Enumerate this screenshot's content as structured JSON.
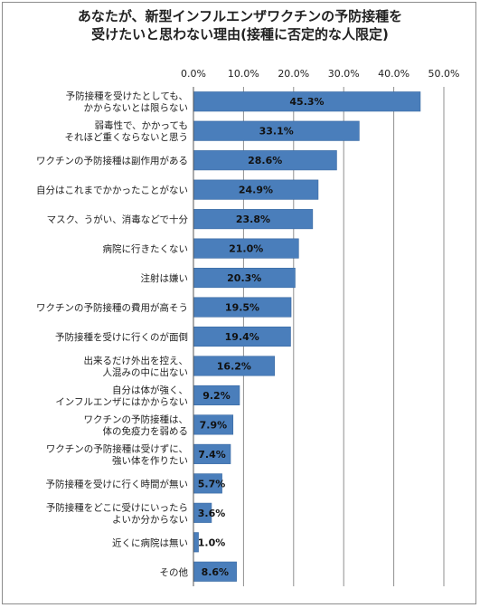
{
  "chart_data": {
    "type": "bar",
    "orientation": "horizontal",
    "title": [
      "あなたが、新型インフルエンザワクチンの予防接種を",
      "受けたいと思わない理由(接種に否定的な人限定)"
    ],
    "xlim": [
      0,
      50
    ],
    "x_ticks": [
      "0.0%",
      "10.0%",
      "20.0%",
      "30.0%",
      "40.0%",
      "50.0%"
    ],
    "grid": "vertical",
    "bar_color": "#4a7ebb",
    "categories": [
      [
        "予防接種を受けたとしても、",
        "かからないとは限らない"
      ],
      [
        "弱毒性で、かかっても",
        "それほど重くならないと思う"
      ],
      [
        "ワクチンの予防接種は副作用がある"
      ],
      [
        "自分はこれまでかかったことがない"
      ],
      [
        "マスク、うがい、消毒などで十分"
      ],
      [
        "病院に行きたくない"
      ],
      [
        "注射は嫌い"
      ],
      [
        "ワクチンの予防接種の費用が高そう"
      ],
      [
        "予防接種を受けに行くのが面倒"
      ],
      [
        "出来るだけ外出を控え、",
        "人混みの中に出ない"
      ],
      [
        "自分は体が強く、",
        "インフルエンザにはかからない"
      ],
      [
        "ワクチンの予防接種は、",
        "体の免疫力を弱める"
      ],
      [
        "ワクチンの予防接種は受けずに、",
        "強い体を作りたい"
      ],
      [
        "予防接種を受けに行く時間が無い"
      ],
      [
        "予防接種をどこに受けにいったら",
        "よいか分からない"
      ],
      [
        "近くに病院は無い"
      ],
      [
        "その他"
      ]
    ],
    "values": [
      45.3,
      33.1,
      28.6,
      24.9,
      23.8,
      21.0,
      20.3,
      19.5,
      19.4,
      16.2,
      9.2,
      7.9,
      7.4,
      5.7,
      3.6,
      1.0,
      8.6
    ],
    "value_labels": [
      "45.3%",
      "33.1%",
      "28.6%",
      "24.9%",
      "23.8%",
      "21.0%",
      "20.3%",
      "19.5%",
      "19.4%",
      "16.2%",
      "9.2%",
      "7.9%",
      "7.4%",
      "5.7%",
      "3.6%",
      "1.0%",
      "8.6%"
    ]
  }
}
